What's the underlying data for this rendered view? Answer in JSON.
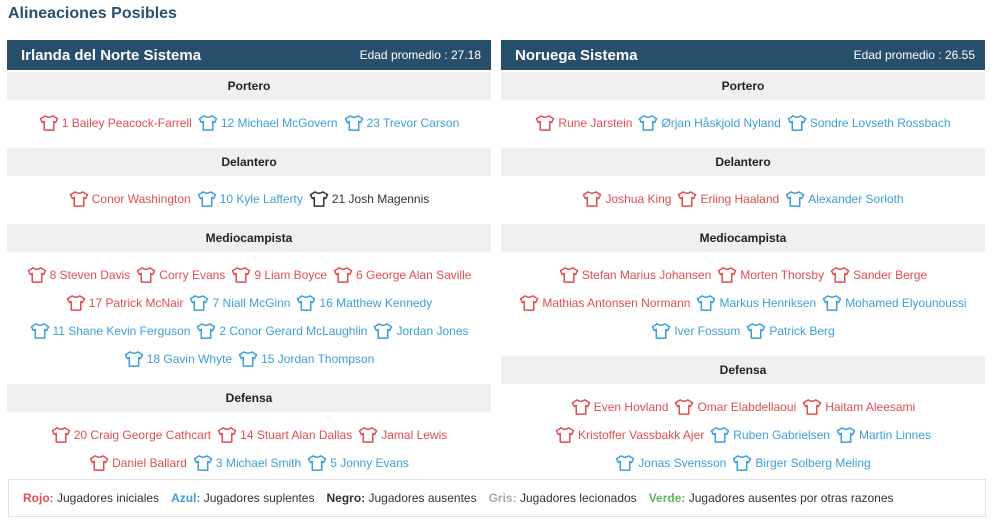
{
  "page_title": "Alineaciones Posibles",
  "colors": {
    "red": "#e24e52",
    "blue": "#3d9fd9",
    "black": "#333333",
    "gray": "#aaaaaa",
    "green": "#5cb85c",
    "header_bg": "#274e6b"
  },
  "teams": [
    {
      "name": "Irlanda del Norte Sistema",
      "age_label": "Edad promedio : 27.18",
      "sections": [
        {
          "title": "Portero",
          "rows": [
            [
              {
                "label": "1 Bailey Peacock-Farrell",
                "color": "red"
              },
              {
                "label": "12 Michael McGovern",
                "color": "blue"
              },
              {
                "label": "23 Trevor Carson",
                "color": "blue"
              }
            ]
          ]
        },
        {
          "title": "Delantero",
          "rows": [
            [
              {
                "label": "Conor Washington",
                "color": "red"
              },
              {
                "label": "10 Kyle Lafferty",
                "color": "blue"
              },
              {
                "label": "21 Josh Magennis",
                "color": "black"
              }
            ]
          ]
        },
        {
          "title": "Mediocampista",
          "rows": [
            [
              {
                "label": "8 Steven Davis",
                "color": "red"
              },
              {
                "label": "Corry Evans",
                "color": "red"
              },
              {
                "label": "9 Liam Boyce",
                "color": "red"
              },
              {
                "label": "6 George Alan Saville",
                "color": "red"
              }
            ],
            [
              {
                "label": "17 Patrick McNair",
                "color": "red"
              },
              {
                "label": "7 Niall McGinn",
                "color": "blue"
              },
              {
                "label": "16 Matthew Kennedy",
                "color": "blue"
              }
            ],
            [
              {
                "label": "11 Shane Kevin Ferguson",
                "color": "blue"
              },
              {
                "label": "2 Conor Gerard McLaughlin",
                "color": "blue"
              },
              {
                "label": "Jordan Jones",
                "color": "blue"
              }
            ],
            [
              {
                "label": "18 Gavin Whyte",
                "color": "blue"
              },
              {
                "label": "15 Jordan Thompson",
                "color": "blue"
              }
            ]
          ]
        },
        {
          "title": "Defensa",
          "rows": [
            [
              {
                "label": "20 Craig George Cathcart",
                "color": "red"
              },
              {
                "label": "14 Stuart Alan Dallas",
                "color": "red"
              },
              {
                "label": "Jamal Lewis",
                "color": "red"
              }
            ],
            [
              {
                "label": "Daniel Ballard",
                "color": "red"
              },
              {
                "label": "3 Michael Smith",
                "color": "blue"
              },
              {
                "label": "5 Jonny Evans",
                "color": "blue"
              }
            ]
          ]
        }
      ]
    },
    {
      "name": "Noruega Sistema",
      "age_label": "Edad promedio : 26.55",
      "sections": [
        {
          "title": "Portero",
          "rows": [
            [
              {
                "label": "Rune Jarstein",
                "color": "red"
              },
              {
                "label": "Ørjan Håskjold Nyland",
                "color": "blue"
              },
              {
                "label": "Sondre Lovseth Rossbach",
                "color": "blue"
              }
            ]
          ]
        },
        {
          "title": "Delantero",
          "rows": [
            [
              {
                "label": "Joshua King",
                "color": "red"
              },
              {
                "label": "Erling Haaland",
                "color": "red"
              },
              {
                "label": "Alexander Sorloth",
                "color": "blue"
              }
            ]
          ]
        },
        {
          "title": "Mediocampista",
          "rows": [
            [
              {
                "label": "Stefan Marius Johansen",
                "color": "red"
              },
              {
                "label": "Morten Thorsby",
                "color": "red"
              },
              {
                "label": "Sander Berge",
                "color": "red"
              }
            ],
            [
              {
                "label": "Mathias Antonsen Normann",
                "color": "red"
              },
              {
                "label": "Markus Henriksen",
                "color": "blue"
              },
              {
                "label": "Mohamed Elyounoussi",
                "color": "blue"
              }
            ],
            [
              {
                "label": "Iver Fossum",
                "color": "blue"
              },
              {
                "label": "Patrick Berg",
                "color": "blue"
              }
            ]
          ]
        },
        {
          "title": "Defensa",
          "rows": [
            [
              {
                "label": "Even Hovland",
                "color": "red"
              },
              {
                "label": "Omar Elabdellaoui",
                "color": "red"
              },
              {
                "label": "Haitam Aleesami",
                "color": "red"
              }
            ],
            [
              {
                "label": "Kristoffer Vassbakk Ajer",
                "color": "red"
              },
              {
                "label": "Ruben Gabrielsen",
                "color": "blue"
              },
              {
                "label": "Martin Linnes",
                "color": "blue"
              }
            ],
            [
              {
                "label": "Jonas Svensson",
                "color": "blue"
              },
              {
                "label": "Birger Solberg Meling",
                "color": "blue"
              }
            ]
          ]
        }
      ]
    }
  ],
  "legend": [
    {
      "key": "Rojo:",
      "text": "Jugadores iniciales",
      "color": "red"
    },
    {
      "key": "Azul:",
      "text": "Jugadores suplentes",
      "color": "blue"
    },
    {
      "key": "Negro:",
      "text": "Jugadores ausentes",
      "color": "black"
    },
    {
      "key": "Gris:",
      "text": "Jugadores lecionados",
      "color": "gray"
    },
    {
      "key": "Verde:",
      "text": "Jugadores ausentes por otras razones",
      "color": "green"
    }
  ]
}
